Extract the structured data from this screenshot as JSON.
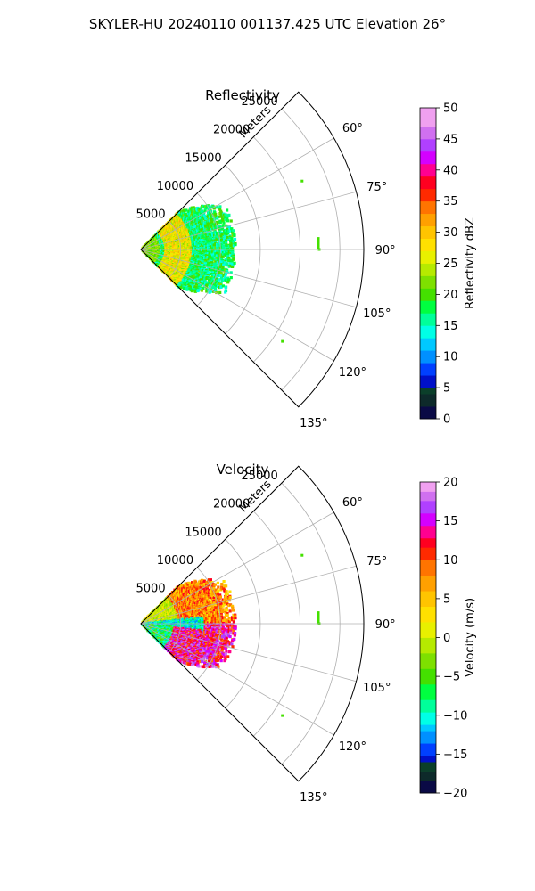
{
  "figure": {
    "suptitle": "SKYLER-HU  20240110  001137.425 UTC Elevation 26°"
  },
  "chart_data": [
    {
      "type": "heatmap",
      "subtype": "radar-ppi-sector",
      "title": "Reflectivity",
      "radial_axis_label": "Meters",
      "radial_ticks": [
        5000,
        10000,
        15000,
        20000,
        25000
      ],
      "radial_tick_labels": [
        "5000",
        "10000",
        "15000",
        "20000",
        "25000"
      ],
      "range_limit_m": 28000,
      "azimuth_range_deg": [
        45,
        135
      ],
      "azimuth_tick_labels": [
        "60°",
        "75°",
        "90°",
        "105°",
        "120°",
        "135°"
      ],
      "grid": true,
      "colorbar": {
        "label": "Reflectivity dBZ",
        "vmin": 0,
        "vmax": 50,
        "ticks": [
          "0",
          "5",
          "10",
          "15",
          "20",
          "25",
          "30",
          "35",
          "40",
          "45",
          "50"
        ]
      },
      "field_description": {
        "echo_extent_m": 12000,
        "high_value_band_m": [
          3000,
          6500
        ],
        "high_value_dbz": 25,
        "outer_value_dbz": 15,
        "isolated_returns": [
          {
            "azimuth_deg": 67,
            "range_m": 22000,
            "dbz": 20
          },
          {
            "azimuth_deg": 88,
            "range_m": 22300,
            "dbz": 20
          },
          {
            "azimuth_deg": 90,
            "range_m": 22400,
            "dbz": 20
          },
          {
            "azimuth_deg": 123,
            "range_m": 21200,
            "dbz": 20
          }
        ]
      }
    },
    {
      "type": "heatmap",
      "subtype": "radar-ppi-sector",
      "title": "Velocity",
      "radial_axis_label": "Meters",
      "radial_ticks": [
        5000,
        10000,
        15000,
        20000,
        25000
      ],
      "radial_tick_labels": [
        "5000",
        "10000",
        "15000",
        "20000",
        "25000"
      ],
      "range_limit_m": 28000,
      "azimuth_range_deg": [
        45,
        135
      ],
      "azimuth_tick_labels": [
        "60°",
        "75°",
        "90°",
        "105°",
        "120°",
        "135°"
      ],
      "grid": true,
      "colorbar": {
        "label": "Velocity (m/s)",
        "vmin": -20,
        "vmax": 20,
        "ticks": [
          "−20",
          "−15",
          "−10",
          "−5",
          "0",
          "5",
          "10",
          "15",
          "20"
        ]
      },
      "field_description": {
        "echo_extent_m": 12000,
        "near_axis_ms": -10,
        "upper_flank_ms": 8,
        "lower_flank_ms": 12,
        "isolated_returns": [
          {
            "azimuth_deg": 67,
            "range_m": 22000,
            "ms": -5
          },
          {
            "azimuth_deg": 88,
            "range_m": 22300,
            "ms": -5
          },
          {
            "azimuth_deg": 90,
            "range_m": 22400,
            "ms": -5
          },
          {
            "azimuth_deg": 123,
            "range_m": 21200,
            "ms": -5
          }
        ]
      }
    }
  ]
}
